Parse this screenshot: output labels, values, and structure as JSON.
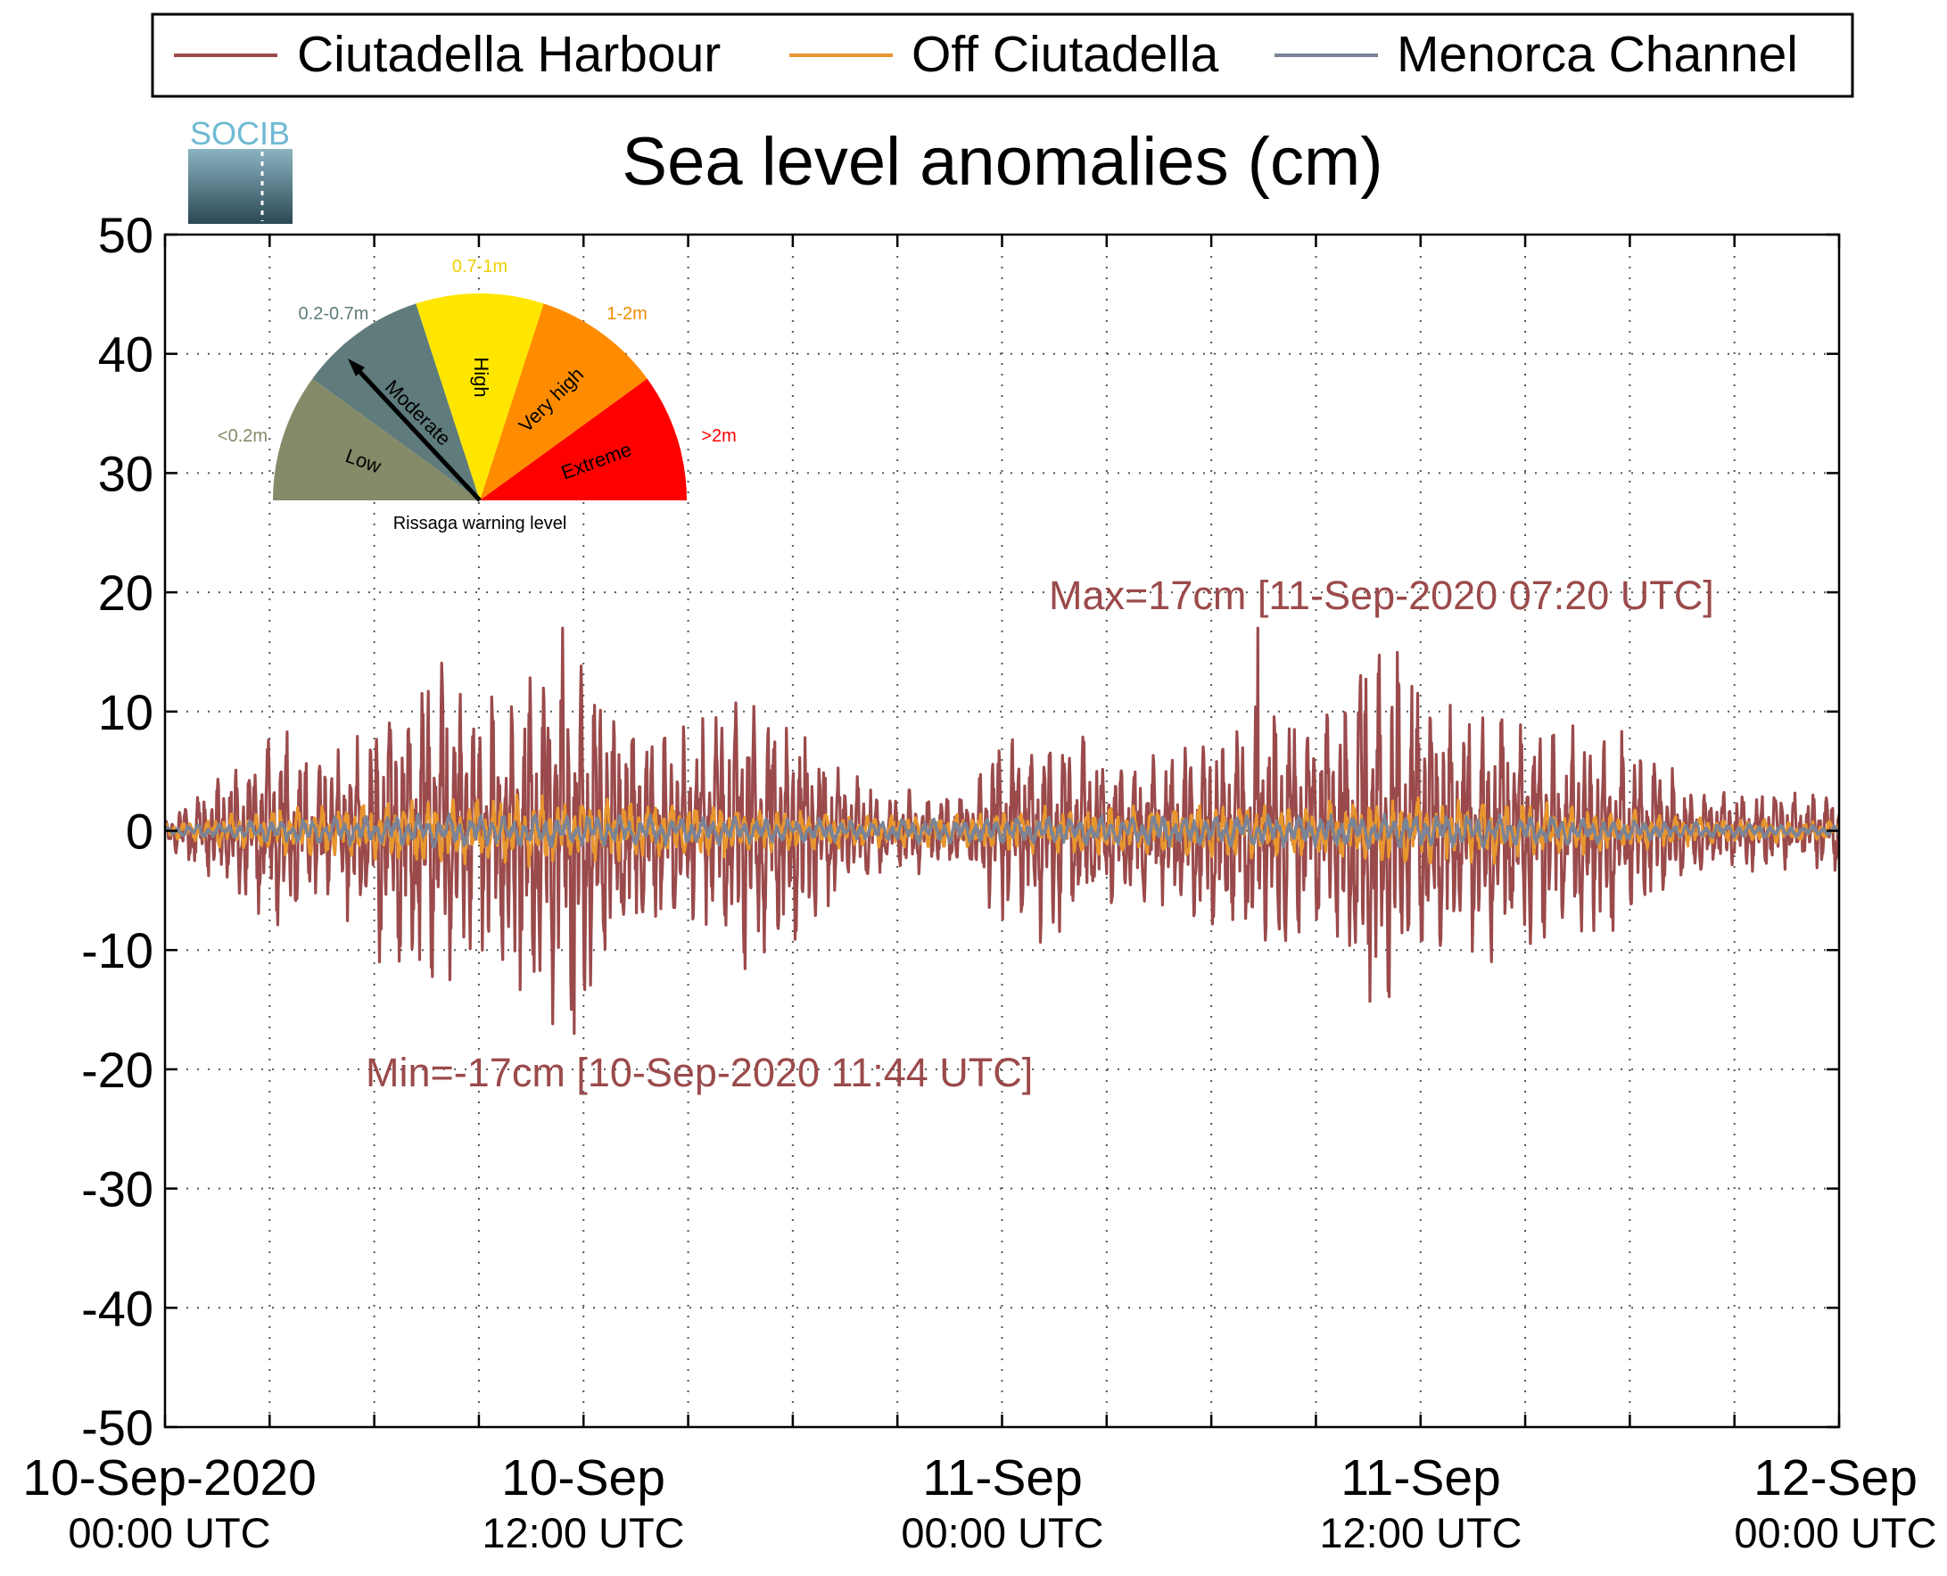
{
  "logo_text": "SOCIB",
  "chart_data": {
    "type": "line",
    "title": "Sea level anomalies (cm)",
    "xlabel": "",
    "ylabel": "",
    "ylim": [
      -50,
      50
    ],
    "yticks": [
      50,
      40,
      30,
      20,
      10,
      0,
      -10,
      -20,
      -30,
      -40,
      -50
    ],
    "y_tick_labels": [
      "50",
      "40",
      "30",
      "20",
      "10",
      "0",
      "-10",
      "-20",
      "-30",
      "-40",
      "-50"
    ],
    "x_range": [
      "2020-09-10 00:00 UTC",
      "2020-09-12 00:00 UTC"
    ],
    "x_tick_labels": [
      {
        "date": "10-Sep-2020",
        "time": "00:00 UTC"
      },
      {
        "date": "10-Sep",
        "time": "12:00 UTC"
      },
      {
        "date": "11-Sep",
        "time": "00:00 UTC"
      },
      {
        "date": "11-Sep",
        "time": "12:00 UTC"
      },
      {
        "date": "12-Sep",
        "time": "00:00 UTC"
      }
    ],
    "grid": true,
    "legend_position": "top",
    "series": [
      {
        "name": "Ciutadella Harbour",
        "color": "#9b4a4b",
        "envelope_hours": [
          0,
          1,
          2,
          3,
          4,
          5,
          6,
          7,
          8,
          9,
          10,
          11,
          12,
          13,
          14,
          15,
          16,
          17,
          18,
          19,
          20,
          21,
          22,
          23,
          24,
          25,
          26,
          27,
          28,
          29,
          30,
          31,
          32,
          33,
          34,
          35,
          36,
          37,
          38,
          39,
          40,
          41,
          42,
          43,
          44,
          45,
          46,
          47,
          48
        ],
        "envelope_cm": [
          1,
          3,
          5,
          8,
          6,
          6,
          9,
          12,
          13,
          10,
          12,
          15,
          14,
          10,
          8,
          7,
          10,
          11,
          9,
          6,
          4,
          3,
          3,
          3,
          7,
          8,
          8,
          6,
          5,
          6,
          8,
          9,
          10,
          8,
          13,
          15,
          11,
          10,
          10,
          9,
          8,
          9,
          7,
          5,
          3,
          3,
          3,
          3,
          3
        ],
        "min_cm": -17,
        "min_time": "2020-09-10 11:44 UTC",
        "max_cm": 17,
        "max_time": "2020-09-11 07:20 UTC"
      },
      {
        "name": "Off Ciutadella",
        "color": "#e8962e",
        "envelope_hours": [
          0,
          4,
          8,
          12,
          16,
          20,
          24,
          28,
          32,
          36,
          40,
          44,
          48
        ],
        "envelope_cm": [
          0.5,
          2,
          2.5,
          2.5,
          2,
          1.2,
          1.5,
          2,
          2,
          2.5,
          2,
          1,
          0.7
        ]
      },
      {
        "name": "Menorca Channel",
        "color": "#7b8396",
        "envelope_hours": [
          0,
          4,
          8,
          12,
          16,
          20,
          24,
          28,
          32,
          36,
          40,
          44,
          48
        ],
        "envelope_cm": [
          0.3,
          1,
          1.2,
          1.2,
          1,
          0.8,
          1,
          1.2,
          1.2,
          1.3,
          1,
          0.6,
          0.4
        ]
      }
    ],
    "annotations": [
      {
        "text": "Max=17cm [11-Sep-2020 07:20 UTC]",
        "color": "#9b4a4b"
      },
      {
        "text": "Min=-17cm [10-Sep-2020 11:44 UTC]",
        "color": "#9b4a4b"
      }
    ]
  },
  "warning_gauge": {
    "caption": "Rissaga warning level",
    "current_level": "Moderate",
    "levels": [
      {
        "name": "Low",
        "range": "<0.2m",
        "color": "#858a68",
        "range_color": "#858a68"
      },
      {
        "name": "Moderate",
        "range": "0.2-0.7m",
        "color": "#5f7b7b",
        "range_color": "#5f7b7b"
      },
      {
        "name": "High",
        "range": "0.7-1m",
        "color": "#ffe600",
        "range_color": "#f0cf00"
      },
      {
        "name": "Very high",
        "range": "1-2m",
        "color": "#ff8c00",
        "range_color": "#f08a00"
      },
      {
        "name": "Extreme",
        "range": ">2m",
        "color": "#ff0000",
        "range_color": "#ff0000"
      }
    ]
  }
}
